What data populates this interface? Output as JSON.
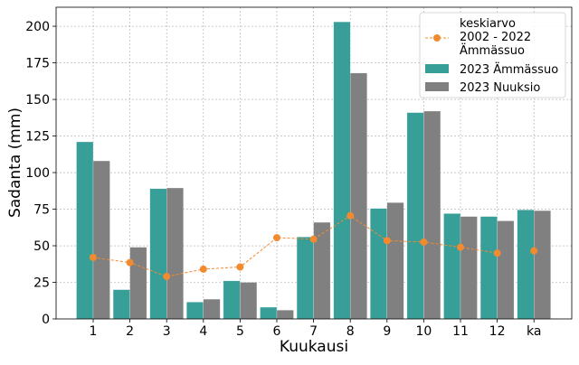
{
  "chart_data": {
    "type": "bar",
    "title": "",
    "xlabel": "Kuukausi",
    "ylabel": "Sadanta (mm)",
    "ylim": [
      0,
      213
    ],
    "yticks": [
      0,
      25,
      50,
      75,
      100,
      125,
      150,
      175,
      200
    ],
    "categories": [
      "1",
      "2",
      "3",
      "4",
      "5",
      "6",
      "7",
      "8",
      "9",
      "10",
      "11",
      "12",
      "ka"
    ],
    "grid": true,
    "legend_position": "top-right",
    "series": [
      {
        "name": "2023 Ämmässuo",
        "kind": "bar",
        "color": "#379e98",
        "values": [
          121,
          20,
          89,
          11.5,
          26,
          8,
          56,
          203,
          75.5,
          141,
          72,
          70,
          74.5
        ]
      },
      {
        "name": "2023 Nuuksio",
        "kind": "bar",
        "color": "#808080",
        "values": [
          108,
          49,
          89.5,
          13.5,
          25,
          6,
          66,
          168,
          79.5,
          142,
          70,
          67,
          74
        ]
      },
      {
        "name": "keskiarvo\n2002 - 2022\nÄmmässuo",
        "kind": "line",
        "color": "#f28a30",
        "legend_lines": [
          "keskiarvo",
          "2002 - 2022",
          "Ämmässuo"
        ],
        "values": [
          42,
          38.5,
          29,
          34,
          35.5,
          55.5,
          54.5,
          70.5,
          53.5,
          52.5,
          49,
          45,
          46.5
        ]
      }
    ]
  }
}
